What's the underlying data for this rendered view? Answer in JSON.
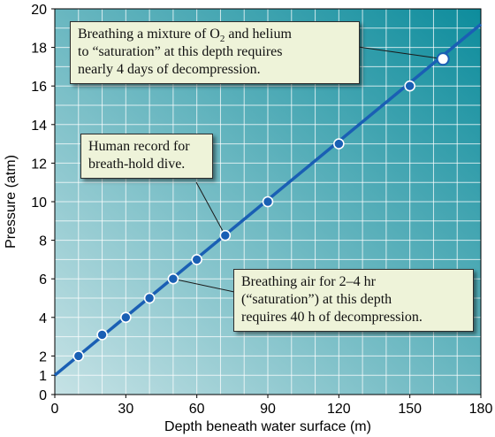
{
  "chart_data": {
    "type": "line",
    "title": "",
    "xlabel": "Depth beneath water surface (m)",
    "ylabel": "Pressure (atm)",
    "xlim": [
      0,
      180
    ],
    "ylim": [
      0,
      20
    ],
    "x_ticks": [
      "0",
      "30",
      "60",
      "90",
      "120",
      "150",
      "180"
    ],
    "y_ticks": [
      "0",
      "1",
      "2",
      "4",
      "6",
      "8",
      "10",
      "12",
      "14",
      "16",
      "18",
      "20"
    ],
    "grid": true,
    "series": [
      {
        "line": [
          [
            0,
            1
          ],
          [
            180,
            19.2
          ]
        ],
        "points": [
          {
            "x": 10,
            "y": 2
          },
          {
            "x": 20,
            "y": 3.1
          },
          {
            "x": 30,
            "y": 4
          },
          {
            "x": 40,
            "y": 5
          },
          {
            "x": 50,
            "y": 6
          },
          {
            "x": 60,
            "y": 7
          },
          {
            "x": 72,
            "y": 8.25
          },
          {
            "x": 90,
            "y": 10
          },
          {
            "x": 120,
            "y": 13
          },
          {
            "x": 150,
            "y": 16
          },
          {
            "x": 164,
            "y": 17.4
          }
        ]
      }
    ],
    "annotations": [
      {
        "id": "helium",
        "lines": [
          "Breathing a mixture of O|2| and helium",
          "to “saturation” at this depth requires",
          "nearly 4 days of decompression."
        ],
        "target": {
          "x": 164,
          "y": 17.4
        }
      },
      {
        "id": "record",
        "lines": [
          "Human record for",
          "breath-hold dive."
        ],
        "target": {
          "x": 72,
          "y": 8.25
        }
      },
      {
        "id": "air",
        "lines": [
          "Breathing air for 2–4 hr",
          "(“saturation”) at this depth",
          "requires 40 h of decompression."
        ],
        "target": {
          "x": 50,
          "y": 6
        }
      }
    ]
  },
  "colors": {
    "background_light": "#c6e2e5",
    "background_dark": "#0d8c9c",
    "gridline": "#ffffff",
    "line": "#1a5fb4",
    "point_fill": "#1a5fb4",
    "point_stroke": "#ffffff",
    "highlight_point_fill": "#ffffff",
    "highlight_point_stroke": "#1a5fb4",
    "callout_fill": "#eef3d9"
  }
}
